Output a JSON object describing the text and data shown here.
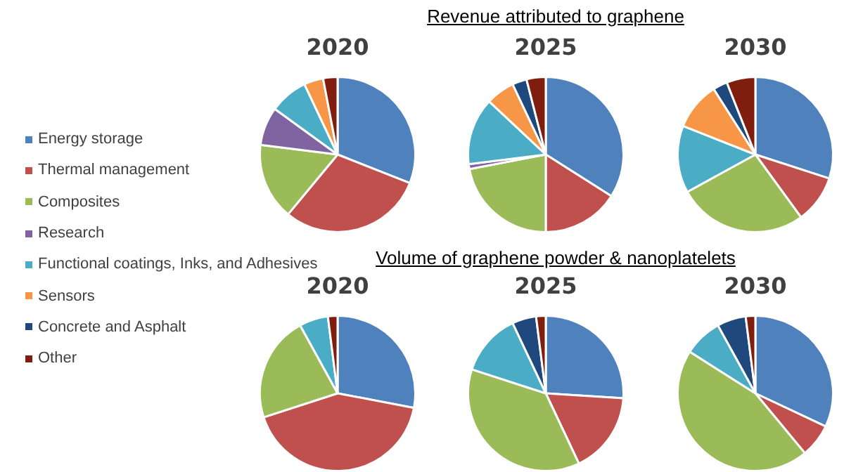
{
  "chart_data": [
    {
      "type": "pie",
      "title": "2020",
      "legend": "left",
      "categories": [
        "Energy storage",
        "Thermal management",
        "Composites",
        "Research",
        "Functional coatings, Inks, and Adhesives",
        "Sensors",
        "Concrete and Asphalt",
        "Other"
      ],
      "values": [
        31,
        30,
        16,
        8,
        8,
        4,
        0,
        3
      ],
      "colors": [
        "#4f81bd",
        "#c0504d",
        "#9bbb59",
        "#8064a2",
        "#4bacc6",
        "#f79646",
        "#1f497d",
        "#7f1d0e"
      ]
    },
    {
      "type": "pie",
      "subtitle": "Revenue attributed to graphene",
      "title": "2025",
      "categories": [
        null,
        null,
        null,
        null,
        null,
        null,
        null,
        null
      ],
      "values": [
        34,
        16,
        22,
        1,
        14,
        6,
        3,
        4
      ],
      "colors": [
        "#4f81bd",
        "#c0504d",
        "#9bbb59",
        "#8064a2",
        "#4bacc6",
        "#f79646",
        "#1f497d",
        "#7f1d0e"
      ]
    },
    {
      "type": "pie",
      "title": "2030",
      "categories": [
        null,
        null,
        null,
        null,
        null,
        null,
        null,
        null
      ],
      "values": [
        30,
        10,
        27,
        0,
        14,
        10,
        3,
        6
      ],
      "colors": [
        "#4f81bd",
        "#c0504d",
        "#9bbb59",
        "#8064a2",
        "#4bacc6",
        "#f79646",
        "#1f497d",
        "#7f1d0e"
      ]
    },
    {
      "type": "pie",
      "title": "2020",
      "categories": [
        null,
        null,
        null,
        null,
        null,
        null,
        null,
        null
      ],
      "values": [
        28,
        42,
        22,
        0,
        6,
        0,
        0,
        2
      ],
      "colors": [
        "#4f81bd",
        "#c0504d",
        "#9bbb59",
        "#8064a2",
        "#4bacc6",
        "#f79646",
        "#1f497d",
        "#7f1d0e"
      ]
    },
    {
      "type": "pie",
      "subtitle": "Volume of graphene powder & nanoplatelets",
      "title": "2025",
      "categories": [
        null,
        null,
        null,
        null,
        null,
        null,
        null,
        null
      ],
      "values": [
        26,
        17,
        37,
        0,
        13,
        0,
        5,
        2
      ],
      "colors": [
        "#4f81bd",
        "#c0504d",
        "#9bbb59",
        "#8064a2",
        "#4bacc6",
        "#f79646",
        "#1f497d",
        "#7f1d0e"
      ]
    },
    {
      "type": "pie",
      "title": "2030",
      "categories": [
        null,
        null,
        null,
        null,
        null,
        null,
        null,
        null
      ],
      "values": [
        32,
        7,
        45,
        0,
        8,
        0,
        6,
        2
      ],
      "colors": [
        "#4f81bd",
        "#c0504d",
        "#9bbb59",
        "#8064a2",
        "#4bacc6",
        "#f79646",
        "#1f497d",
        "#7f1d0e"
      ]
    }
  ]
}
